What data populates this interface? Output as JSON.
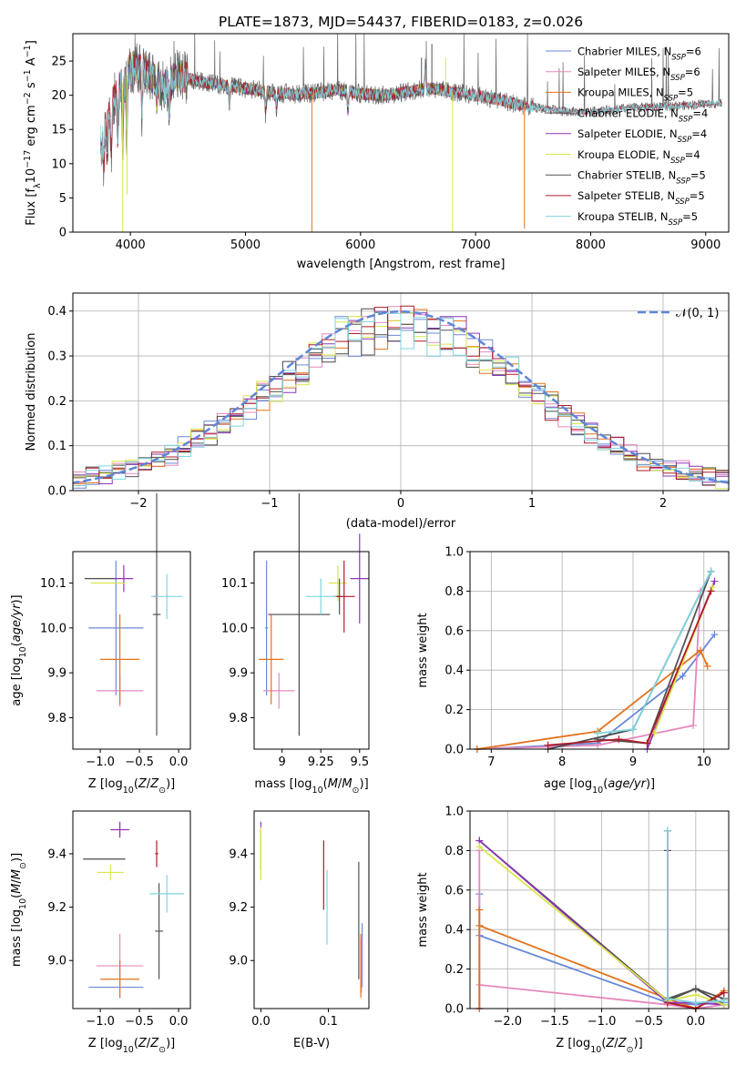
{
  "colors": {
    "Chabrier MILES": "#6a89d8",
    "Salpeter MILES": "#e787bd",
    "Kroupa MILES": "#e3721c",
    "Chabrier ELODIE": "#4a4a4a",
    "Salpeter ELODIE": "#8e35b8",
    "Kroupa ELODIE": "#d9e64b",
    "Chabrier STELIB": "#555555",
    "Salpeter STELIB": "#b01a28",
    "Kroupa STELIB": "#7fd5e0",
    "gauss": "#5f86d9"
  },
  "chart_data": [
    {
      "type": "line",
      "title": "PLATE=1873, MJD=54437, FIBERID=0183, z=0.026",
      "xlabel": "wavelength [Angstrom, rest frame]",
      "ylabel": "Flux [fλ10⁻¹⁷ erg cm⁻² s⁻¹ A⁻¹]",
      "xlim": [
        3500,
        9200
      ],
      "ylim": [
        0,
        29
      ],
      "xticks": [
        4000,
        5000,
        6000,
        7000,
        8000,
        9000
      ],
      "yticks": [
        0,
        5,
        10,
        15,
        20,
        25
      ],
      "legend_placement": "upper-right",
      "series_names": [
        "Chabrier MILES, N_SSP=6",
        "Salpeter MILES, N_SSP=6",
        "Kroupa MILES, N_SSP=5",
        "Chabrier ELODIE, N_SSP=4",
        "Salpeter ELODIE, N_SSP=4",
        "Kroupa ELODIE, N_SSP=4",
        "Chabrier STELIB, N_SSP=5",
        "Salpeter STELIB, N_SSP=5",
        "Kroupa STELIB, N_SSP=5"
      ],
      "legend": [
        {
          "name": "Chabrier MILES",
          "label": "Chabrier MILES, N",
          "sub": "SSP",
          "val": "=6"
        },
        {
          "name": "Salpeter MILES",
          "label": "Salpeter MILES, N",
          "sub": "SSP",
          "val": "=6"
        },
        {
          "name": "Kroupa MILES",
          "label": "Kroupa MILES, N",
          "sub": "SSP",
          "val": "=5"
        },
        {
          "name": "Chabrier ELODIE",
          "label": "Chabrier ELODIE, N",
          "sub": "SSP",
          "val": "=4"
        },
        {
          "name": "Salpeter ELODIE",
          "label": "Salpeter ELODIE, N",
          "sub": "SSP",
          "val": "=4"
        },
        {
          "name": "Kroupa ELODIE",
          "label": "Kroupa ELODIE, N",
          "sub": "SSP",
          "val": "=4"
        },
        {
          "name": "Chabrier STELIB",
          "label": "Chabrier STELIB, N",
          "sub": "SSP",
          "val": "=5"
        },
        {
          "name": "Salpeter STELIB",
          "label": "Salpeter STELIB, N",
          "sub": "SSP",
          "val": "=5"
        },
        {
          "name": "Kroupa STELIB",
          "label": "Kroupa STELIB, N",
          "sub": "SSP",
          "val": "=5"
        }
      ],
      "continuum": [
        [
          3740,
          14
        ],
        [
          3800,
          16
        ],
        [
          3850,
          19
        ],
        [
          3900,
          21
        ],
        [
          3960,
          22.5
        ],
        [
          4000,
          24
        ],
        [
          4100,
          24
        ],
        [
          4200,
          22.5
        ],
        [
          4300,
          21
        ],
        [
          4400,
          23
        ],
        [
          4600,
          22
        ],
        [
          4800,
          21.5
        ],
        [
          5000,
          21
        ],
        [
          5200,
          20.5
        ],
        [
          5400,
          20.2
        ],
        [
          5600,
          20.3
        ],
        [
          5800,
          20.8
        ],
        [
          6000,
          20.2
        ],
        [
          6200,
          20
        ],
        [
          6400,
          20.5
        ],
        [
          6600,
          21
        ],
        [
          6800,
          20.5
        ],
        [
          7000,
          20
        ],
        [
          7200,
          19.4
        ],
        [
          7400,
          18.5
        ],
        [
          7600,
          18
        ],
        [
          7800,
          17.6
        ],
        [
          8000,
          17.6
        ],
        [
          8400,
          18.2
        ],
        [
          8800,
          18.5
        ],
        [
          9140,
          18.9
        ]
      ],
      "features": [
        {
          "x": 3933,
          "y": 0,
          "series": "Kroupa ELODIE"
        },
        {
          "x": 5577,
          "y": 0,
          "series": "Kroupa MILES"
        },
        {
          "x": 6800,
          "y": 0,
          "series": "Kroupa ELODIE"
        },
        {
          "x": 7425,
          "y": 0.5,
          "series": "Kroupa MILES"
        },
        {
          "x": 3970,
          "y": 5.5,
          "series": "Kroupa ELODIE"
        },
        {
          "x": 6530,
          "y": 25.5,
          "series": "Chabrier STELIB"
        },
        {
          "x": 6620,
          "y": 27.5,
          "series": "Chabrier STELIB"
        },
        {
          "x": 6740,
          "y": 25.5,
          "series": "Kroupa ELODIE"
        }
      ]
    },
    {
      "type": "histogram",
      "xlabel": "(data-model)/error",
      "ylabel": "Normed distribution",
      "xlim": [
        -2.5,
        2.5
      ],
      "ylim": [
        0,
        0.44
      ],
      "xticks": [
        -2,
        -1,
        0,
        1,
        2
      ],
      "yticks": [
        0.0,
        0.1,
        0.2,
        0.3,
        0.4
      ],
      "bin_width": 0.1,
      "legend": [
        {
          "name": "N(0,1)",
          "label": "𝒩(0, 1)",
          "style": "dashed"
        }
      ]
    },
    {
      "type": "errorbar",
      "xlabel": "Z [log₁₀(Z/Z⊙)]",
      "ylabel": "age  [log₁₀(age/yr)]",
      "xlim": [
        -1.35,
        0.15
      ],
      "ylim": [
        9.73,
        10.17
      ],
      "xticks": [
        -1.0,
        -0.5,
        0.0
      ],
      "yticks": [
        9.8,
        9.9,
        10.0,
        10.1
      ],
      "points": [
        {
          "series": "Chabrier MILES",
          "x": -0.8,
          "y": 10.0,
          "xerr": 0.35,
          "yerr": 0.15
        },
        {
          "series": "Salpeter MILES",
          "x": -0.75,
          "y": 9.86,
          "xerr": 0.3,
          "yerr": 0.035
        },
        {
          "series": "Kroupa MILES",
          "x": -0.75,
          "y": 9.93,
          "xerr": 0.25,
          "yerr": 0.1
        },
        {
          "series": "Chabrier ELODIE",
          "x": -1.0,
          "y": 10.11,
          "xerr": 0.2,
          "yerr": 0.0
        },
        {
          "series": "Salpeter ELODIE",
          "x": -0.7,
          "y": 10.11,
          "xerr": 0.12,
          "yerr": 0.03
        },
        {
          "series": "Kroupa ELODIE",
          "x": -0.9,
          "y": 10.1,
          "xerr": 0.22,
          "yerr": 0.0
        },
        {
          "series": "Chabrier STELIB",
          "x": -0.28,
          "y": 10.03,
          "xerr": 0.05,
          "yerr": 0.27
        },
        {
          "series": "Salpeter STELIB",
          "x": -0.3,
          "y": 10.07,
          "xerr": 0.02,
          "yerr": 0.0
        },
        {
          "series": "Kroupa STELIB",
          "x": -0.15,
          "y": 10.07,
          "xerr": 0.2,
          "yerr": 0.05
        }
      ]
    },
    {
      "type": "errorbar",
      "xlabel": "mass [log₁₀(M/M⊙)]",
      "ylabel": "",
      "xlim": [
        8.82,
        9.56
      ],
      "ylim": [
        9.73,
        10.17
      ],
      "xticks": [
        9.0,
        9.25,
        9.5
      ],
      "yticks": [
        9.8,
        9.9,
        10.0,
        10.1
      ],
      "points": [
        {
          "series": "Chabrier MILES",
          "x": 8.9,
          "y": 10.0,
          "xerr": 0.01,
          "yerr": 0.15
        },
        {
          "series": "Salpeter MILES",
          "x": 8.98,
          "y": 9.86,
          "xerr": 0.1,
          "yerr": 0.04
        },
        {
          "series": "Kroupa MILES",
          "x": 8.93,
          "y": 9.93,
          "xerr": 0.08,
          "yerr": 0.1
        },
        {
          "series": "Chabrier ELODIE",
          "x": 9.11,
          "y": 10.03,
          "xerr": 0.2,
          "yerr": 0.27
        },
        {
          "series": "Salpeter ELODIE",
          "x": 9.5,
          "y": 10.11,
          "xerr": 0.06,
          "yerr": 0.1
        },
        {
          "series": "Kroupa ELODIE",
          "x": 9.36,
          "y": 10.1,
          "xerr": 0.06,
          "yerr": 0.04
        },
        {
          "series": "Chabrier STELIB",
          "x": 9.37,
          "y": 10.07,
          "xerr": 0.02,
          "yerr": 0.04
        },
        {
          "series": "Salpeter STELIB",
          "x": 9.4,
          "y": 10.07,
          "xerr": 0.07,
          "yerr": 0.08
        },
        {
          "series": "Kroupa STELIB",
          "x": 9.25,
          "y": 10.07,
          "xerr": 0.1,
          "yerr": 0.04
        }
      ]
    },
    {
      "type": "line",
      "xlabel": "age  [log₁₀(age/yr)]",
      "ylabel": "mass weight",
      "xlim": [
        6.7,
        10.35
      ],
      "ylim": [
        0,
        1
      ],
      "xticks": [
        7,
        8,
        9,
        10
      ],
      "yticks": [
        0.0,
        0.2,
        0.4,
        0.6,
        0.8,
        1.0
      ],
      "series": [
        {
          "name": "Chabrier MILES",
          "points": [
            [
              6.8,
              0
            ],
            [
              8.5,
              0.03
            ],
            [
              9.7,
              0.37
            ],
            [
              10.15,
              0.58
            ]
          ]
        },
        {
          "name": "Salpeter MILES",
          "points": [
            [
              6.8,
              0
            ],
            [
              8.5,
              0.02
            ],
            [
              9.85,
              0.12
            ],
            [
              9.95,
              0.8
            ]
          ]
        },
        {
          "name": "Kroupa MILES",
          "points": [
            [
              6.8,
              0
            ],
            [
              8.5,
              0.09
            ],
            [
              9.95,
              0.5
            ],
            [
              10.05,
              0.42
            ]
          ]
        },
        {
          "name": "Chabrier ELODIE",
          "points": [
            [
              7.8,
              0
            ],
            [
              9.0,
              0.1
            ],
            [
              10.1,
              0.9
            ]
          ]
        },
        {
          "name": "Salpeter ELODIE",
          "points": [
            [
              9.2,
              0
            ],
            [
              10.15,
              0.85
            ]
          ]
        },
        {
          "name": "Kroupa ELODIE",
          "points": [
            [
              9.3,
              0.08
            ],
            [
              10.12,
              0.82
            ]
          ]
        },
        {
          "name": "Chabrier STELIB",
          "points": [
            [
              8.5,
              0.05
            ],
            [
              9.2,
              0.03
            ],
            [
              10.1,
              0.9
            ]
          ]
        },
        {
          "name": "Salpeter STELIB",
          "points": [
            [
              7.8,
              0.02
            ],
            [
              8.8,
              0.05
            ],
            [
              9.2,
              0.03
            ],
            [
              10.1,
              0.8
            ]
          ]
        },
        {
          "name": "Kroupa STELIB",
          "points": [
            [
              8.5,
              0.08
            ],
            [
              9.0,
              0.1
            ],
            [
              10.1,
              0.9
            ]
          ]
        }
      ]
    },
    {
      "type": "errorbar",
      "xlabel": "Z [log₁₀(Z/Z⊙)]",
      "ylabel": "mass [log₁₀(M/M⊙)]",
      "xlim": [
        -1.35,
        0.15
      ],
      "ylim": [
        8.82,
        9.56
      ],
      "xticks": [
        -1.0,
        -0.5,
        0.0
      ],
      "yticks": [
        9.0,
        9.2,
        9.4
      ],
      "points": [
        {
          "series": "Chabrier MILES",
          "x": -0.8,
          "y": 8.9,
          "xerr": 0.35,
          "yerr": 0.0
        },
        {
          "series": "Salpeter MILES",
          "x": -0.75,
          "y": 8.98,
          "xerr": 0.3,
          "yerr": 0.12
        },
        {
          "series": "Kroupa MILES",
          "x": -0.75,
          "y": 8.93,
          "xerr": 0.25,
          "yerr": 0.07
        },
        {
          "series": "Chabrier ELODIE",
          "x": -0.95,
          "y": 9.38,
          "xerr": 0.27,
          "yerr": 0.0
        },
        {
          "series": "Salpeter ELODIE",
          "x": -0.75,
          "y": 9.49,
          "xerr": 0.12,
          "yerr": 0.03
        },
        {
          "series": "Kroupa ELODIE",
          "x": -0.87,
          "y": 9.33,
          "xerr": 0.17,
          "yerr": 0.03
        },
        {
          "series": "Chabrier STELIB",
          "x": -0.25,
          "y": 9.11,
          "xerr": 0.05,
          "yerr": 0.18
        },
        {
          "series": "Salpeter STELIB",
          "x": -0.28,
          "y": 9.4,
          "xerr": 0.02,
          "yerr": 0.05
        },
        {
          "series": "Kroupa STELIB",
          "x": -0.15,
          "y": 9.25,
          "xerr": 0.22,
          "yerr": 0.07
        }
      ]
    },
    {
      "type": "errorbar",
      "xlabel": "E(B-V)",
      "ylabel": "",
      "xlim": [
        -0.01,
        0.16
      ],
      "ylim": [
        8.82,
        9.56
      ],
      "xticks": [
        0.0,
        0.1
      ],
      "yticks": [
        9.0,
        9.2,
        9.4
      ],
      "points": [
        {
          "series": "Chabrier MILES",
          "x": 0.15,
          "y": 9.02,
          "xerr": 0,
          "yerr": 0.12
        },
        {
          "series": "Salpeter MILES",
          "x": 0.149,
          "y": 8.98,
          "xerr": 0,
          "yerr": 0.1
        },
        {
          "series": "Kroupa MILES",
          "x": 0.148,
          "y": 8.98,
          "xerr": 0,
          "yerr": 0.12
        },
        {
          "series": "Chabrier ELODIE",
          "x": 0.0,
          "y": 9.4,
          "xerr": 0,
          "yerr": 0.06
        },
        {
          "series": "Salpeter ELODIE",
          "x": 0.0,
          "y": 9.49,
          "xerr": 0,
          "yerr": 0.03
        },
        {
          "series": "Kroupa ELODIE",
          "x": 0.0,
          "y": 9.4,
          "xerr": 0,
          "yerr": 0.1
        },
        {
          "series": "Chabrier STELIB",
          "x": 0.145,
          "y": 9.15,
          "xerr": 0,
          "yerr": 0.22
        },
        {
          "series": "Salpeter STELIB",
          "x": 0.093,
          "y": 9.32,
          "xerr": 0,
          "yerr": 0.13
        },
        {
          "series": "Kroupa STELIB",
          "x": 0.098,
          "y": 9.2,
          "xerr": 0,
          "yerr": 0.14
        }
      ]
    },
    {
      "type": "line",
      "xlabel": "Z [log₁₀(Z/Z⊙)]",
      "ylabel": "mass weight",
      "xlim": [
        -2.4,
        0.35
      ],
      "ylim": [
        0,
        1
      ],
      "xticks": [
        -2.0,
        -1.5,
        -1.0,
        -0.5,
        0.0
      ],
      "yticks": [
        0.0,
        0.2,
        0.4,
        0.6,
        0.8,
        1.0
      ],
      "series": [
        {
          "name": "Chabrier MILES",
          "points": [
            [
              -2.3,
              0
            ],
            [
              -2.3,
              0.58
            ],
            [
              -2.3,
              0.37
            ],
            [
              -0.3,
              0.03
            ],
            [
              0,
              0.02
            ],
            [
              0.3,
              0.03
            ]
          ]
        },
        {
          "name": "Salpeter MILES",
          "points": [
            [
              -2.3,
              0
            ],
            [
              -2.3,
              0.8
            ],
            [
              -2.3,
              0.12
            ],
            [
              -0.3,
              0.02
            ],
            [
              0,
              0
            ],
            [
              0.3,
              0.02
            ]
          ]
        },
        {
          "name": "Kroupa MILES",
          "points": [
            [
              -2.3,
              0
            ],
            [
              -2.3,
              0.5
            ],
            [
              -2.3,
              0.42
            ],
            [
              -0.3,
              0.05
            ],
            [
              0,
              0
            ],
            [
              0.3,
              0.09
            ]
          ]
        },
        {
          "name": "Chabrier ELODIE",
          "points": [
            [
              -2.3,
              0.85
            ],
            [
              -0.3,
              0.04
            ],
            [
              0,
              0.1
            ],
            [
              0.3,
              0.02
            ]
          ]
        },
        {
          "name": "Salpeter ELODIE",
          "points": [
            [
              -2.3,
              0.85
            ],
            [
              -0.3,
              0.03
            ],
            [
              0,
              0.03
            ],
            [
              0.3,
              0.02
            ]
          ]
        },
        {
          "name": "Kroupa ELODIE",
          "points": [
            [
              -2.3,
              0.82
            ],
            [
              -0.3,
              0.04
            ],
            [
              0,
              0.07
            ],
            [
              0.3,
              0.02
            ]
          ]
        },
        {
          "name": "Chabrier STELIB",
          "points": [
            [
              -0.3,
              0.8
            ],
            [
              -0.3,
              0.05
            ],
            [
              0,
              0.1
            ],
            [
              0.3,
              0.05
            ]
          ]
        },
        {
          "name": "Salpeter STELIB",
          "points": [
            [
              -0.3,
              0.9
            ],
            [
              -0.3,
              0.03
            ],
            [
              0,
              0
            ],
            [
              0.3,
              0.08
            ]
          ]
        },
        {
          "name": "Kroupa STELIB",
          "points": [
            [
              -0.3,
              0.9
            ],
            [
              -0.3,
              0.05
            ],
            [
              0,
              0.03
            ],
            [
              0.3,
              0.04
            ]
          ]
        }
      ]
    }
  ]
}
